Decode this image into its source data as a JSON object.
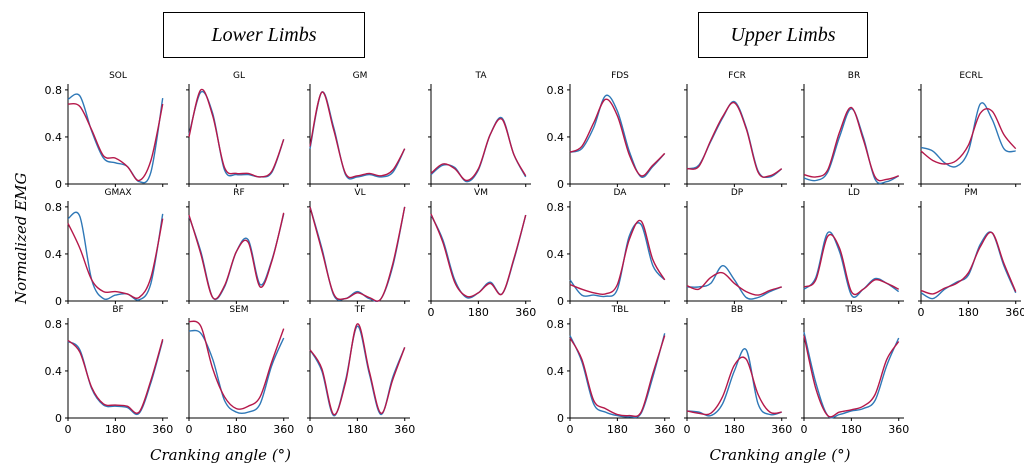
{
  "headers": {
    "lower": "Lower Limbs",
    "upper": "Upper Limbs"
  },
  "axis_labels": {
    "x_left": "Cranking angle (°)",
    "x_right": "Cranking angle (°)",
    "y": "Normalized EMG"
  },
  "colors": {
    "series_a": "#2f78b7",
    "series_b": "#b5184a"
  },
  "chart_data": {
    "type": "line",
    "xlim": [
      0,
      380
    ],
    "ylim": [
      0,
      0.85
    ],
    "x": [
      0,
      45,
      90,
      135,
      180,
      225,
      270,
      315,
      360
    ],
    "x_ticks": [
      "0",
      "180",
      "360"
    ],
    "y_ticks": [
      "0",
      "0.4",
      "0.8"
    ],
    "grid": false,
    "panels": [
      {
        "name": "SOL",
        "group": "lower",
        "row": 0,
        "col": 0,
        "a": [
          0.72,
          0.75,
          0.45,
          0.22,
          0.18,
          0.15,
          0.02,
          0.1,
          0.73
        ],
        "b": [
          0.68,
          0.66,
          0.46,
          0.24,
          0.22,
          0.15,
          0.03,
          0.2,
          0.68
        ]
      },
      {
        "name": "GL",
        "group": "lower",
        "row": 0,
        "col": 1,
        "a": [
          0.42,
          0.78,
          0.6,
          0.12,
          0.08,
          0.08,
          0.06,
          0.1,
          0.38
        ],
        "b": [
          0.4,
          0.8,
          0.58,
          0.14,
          0.09,
          0.09,
          0.06,
          0.11,
          0.38
        ]
      },
      {
        "name": "GM",
        "group": "lower",
        "row": 0,
        "col": 2,
        "a": [
          0.3,
          0.78,
          0.48,
          0.08,
          0.06,
          0.08,
          0.06,
          0.1,
          0.3
        ],
        "b": [
          0.32,
          0.78,
          0.46,
          0.09,
          0.07,
          0.09,
          0.07,
          0.12,
          0.3
        ]
      },
      {
        "name": "TA",
        "group": "lower",
        "row": 0,
        "col": 3,
        "a": [
          0.08,
          0.16,
          0.14,
          0.02,
          0.12,
          0.42,
          0.56,
          0.25,
          0.06
        ],
        "b": [
          0.09,
          0.17,
          0.13,
          0.03,
          0.13,
          0.42,
          0.55,
          0.25,
          0.07
        ]
      },
      {
        "name": "GMAX",
        "group": "lower",
        "row": 1,
        "col": 0,
        "a": [
          0.7,
          0.72,
          0.18,
          0.02,
          0.05,
          0.06,
          0.01,
          0.15,
          0.74
        ],
        "b": [
          0.66,
          0.45,
          0.18,
          0.08,
          0.08,
          0.06,
          0.03,
          0.2,
          0.7
        ]
      },
      {
        "name": "RF",
        "group": "lower",
        "row": 1,
        "col": 1,
        "a": [
          0.72,
          0.42,
          0.03,
          0.12,
          0.42,
          0.52,
          0.14,
          0.35,
          0.74
        ],
        "b": [
          0.73,
          0.4,
          0.03,
          0.13,
          0.42,
          0.5,
          0.12,
          0.34,
          0.75
        ]
      },
      {
        "name": "VL",
        "group": "lower",
        "row": 1,
        "col": 2,
        "a": [
          0.8,
          0.45,
          0.05,
          0.02,
          0.08,
          0.02,
          0.02,
          0.3,
          0.8
        ],
        "b": [
          0.8,
          0.43,
          0.06,
          0.02,
          0.07,
          0.03,
          0.02,
          0.32,
          0.8
        ]
      },
      {
        "name": "VM",
        "group": "lower",
        "row": 1,
        "col": 3,
        "a": [
          0.73,
          0.52,
          0.18,
          0.03,
          0.07,
          0.16,
          0.06,
          0.35,
          0.73
        ],
        "b": [
          0.74,
          0.5,
          0.16,
          0.04,
          0.07,
          0.15,
          0.06,
          0.36,
          0.73
        ]
      },
      {
        "name": "BF",
        "group": "lower",
        "row": 2,
        "col": 0,
        "a": [
          0.65,
          0.58,
          0.25,
          0.11,
          0.1,
          0.09,
          0.04,
          0.3,
          0.66
        ],
        "b": [
          0.66,
          0.56,
          0.26,
          0.12,
          0.11,
          0.1,
          0.05,
          0.32,
          0.67
        ]
      },
      {
        "name": "SEM",
        "group": "lower",
        "row": 2,
        "col": 1,
        "a": [
          0.74,
          0.72,
          0.5,
          0.15,
          0.05,
          0.05,
          0.12,
          0.45,
          0.68
        ],
        "b": [
          0.82,
          0.78,
          0.42,
          0.18,
          0.08,
          0.1,
          0.18,
          0.48,
          0.76
        ]
      },
      {
        "name": "TF",
        "group": "lower",
        "row": 2,
        "col": 2,
        "a": [
          0.58,
          0.4,
          0.02,
          0.32,
          0.78,
          0.38,
          0.03,
          0.35,
          0.6
        ],
        "b": [
          0.58,
          0.42,
          0.03,
          0.3,
          0.8,
          0.4,
          0.04,
          0.33,
          0.6
        ]
      },
      {
        "name": "FDS",
        "group": "upper",
        "row": 0,
        "col": 0,
        "a": [
          0.27,
          0.3,
          0.48,
          0.75,
          0.62,
          0.28,
          0.06,
          0.15,
          0.26
        ],
        "b": [
          0.27,
          0.32,
          0.52,
          0.72,
          0.58,
          0.25,
          0.07,
          0.16,
          0.26
        ]
      },
      {
        "name": "FCR",
        "group": "upper",
        "row": 0,
        "col": 1,
        "a": [
          0.13,
          0.16,
          0.36,
          0.56,
          0.7,
          0.48,
          0.11,
          0.06,
          0.13
        ],
        "b": [
          0.13,
          0.15,
          0.37,
          0.57,
          0.69,
          0.47,
          0.1,
          0.07,
          0.13
        ]
      },
      {
        "name": "BR",
        "group": "upper",
        "row": 0,
        "col": 2,
        "a": [
          0.05,
          0.03,
          0.1,
          0.4,
          0.64,
          0.4,
          0.04,
          0.02,
          0.07
        ],
        "b": [
          0.08,
          0.06,
          0.12,
          0.44,
          0.65,
          0.38,
          0.06,
          0.04,
          0.07
        ]
      },
      {
        "name": "ECRL",
        "group": "upper",
        "row": 0,
        "col": 3,
        "a": [
          0.31,
          0.28,
          0.18,
          0.15,
          0.28,
          0.68,
          0.55,
          0.3,
          0.28
        ],
        "b": [
          0.28,
          0.2,
          0.17,
          0.2,
          0.33,
          0.6,
          0.62,
          0.42,
          0.3
        ]
      },
      {
        "name": "DA",
        "group": "upper",
        "row": 1,
        "col": 0,
        "a": [
          0.18,
          0.05,
          0.05,
          0.04,
          0.1,
          0.55,
          0.65,
          0.3,
          0.18
        ],
        "b": [
          0.14,
          0.1,
          0.07,
          0.06,
          0.14,
          0.52,
          0.68,
          0.35,
          0.18
        ]
      },
      {
        "name": "DP",
        "group": "upper",
        "row": 1,
        "col": 1,
        "a": [
          0.12,
          0.12,
          0.15,
          0.3,
          0.18,
          0.03,
          0.03,
          0.08,
          0.12
        ],
        "b": [
          0.13,
          0.1,
          0.2,
          0.24,
          0.15,
          0.08,
          0.05,
          0.09,
          0.12
        ]
      },
      {
        "name": "LD",
        "group": "upper",
        "row": 1,
        "col": 2,
        "a": [
          0.1,
          0.2,
          0.58,
          0.42,
          0.05,
          0.1,
          0.19,
          0.15,
          0.08
        ],
        "b": [
          0.12,
          0.18,
          0.55,
          0.45,
          0.08,
          0.1,
          0.18,
          0.15,
          0.1
        ]
      },
      {
        "name": "PM",
        "group": "upper",
        "row": 1,
        "col": 3,
        "a": [
          0.07,
          0.02,
          0.1,
          0.16,
          0.22,
          0.48,
          0.58,
          0.3,
          0.07
        ],
        "b": [
          0.09,
          0.06,
          0.11,
          0.15,
          0.24,
          0.46,
          0.58,
          0.32,
          0.08
        ]
      },
      {
        "name": "TBL",
        "group": "upper",
        "row": 2,
        "col": 0,
        "a": [
          0.7,
          0.48,
          0.12,
          0.05,
          0.02,
          0.01,
          0.04,
          0.35,
          0.72
        ],
        "b": [
          0.68,
          0.5,
          0.15,
          0.08,
          0.03,
          0.02,
          0.05,
          0.38,
          0.7
        ]
      },
      {
        "name": "BB",
        "group": "upper",
        "row": 2,
        "col": 1,
        "a": [
          0.06,
          0.05,
          0.02,
          0.12,
          0.4,
          0.58,
          0.12,
          0.03,
          0.05
        ],
        "b": [
          0.06,
          0.04,
          0.04,
          0.18,
          0.45,
          0.5,
          0.2,
          0.05,
          0.05
        ]
      },
      {
        "name": "TBS",
        "group": "upper",
        "row": 2,
        "col": 2,
        "a": [
          0.73,
          0.3,
          0.02,
          0.03,
          0.06,
          0.08,
          0.15,
          0.45,
          0.68
        ],
        "b": [
          0.7,
          0.25,
          0.02,
          0.05,
          0.07,
          0.1,
          0.2,
          0.5,
          0.65
        ]
      }
    ]
  }
}
